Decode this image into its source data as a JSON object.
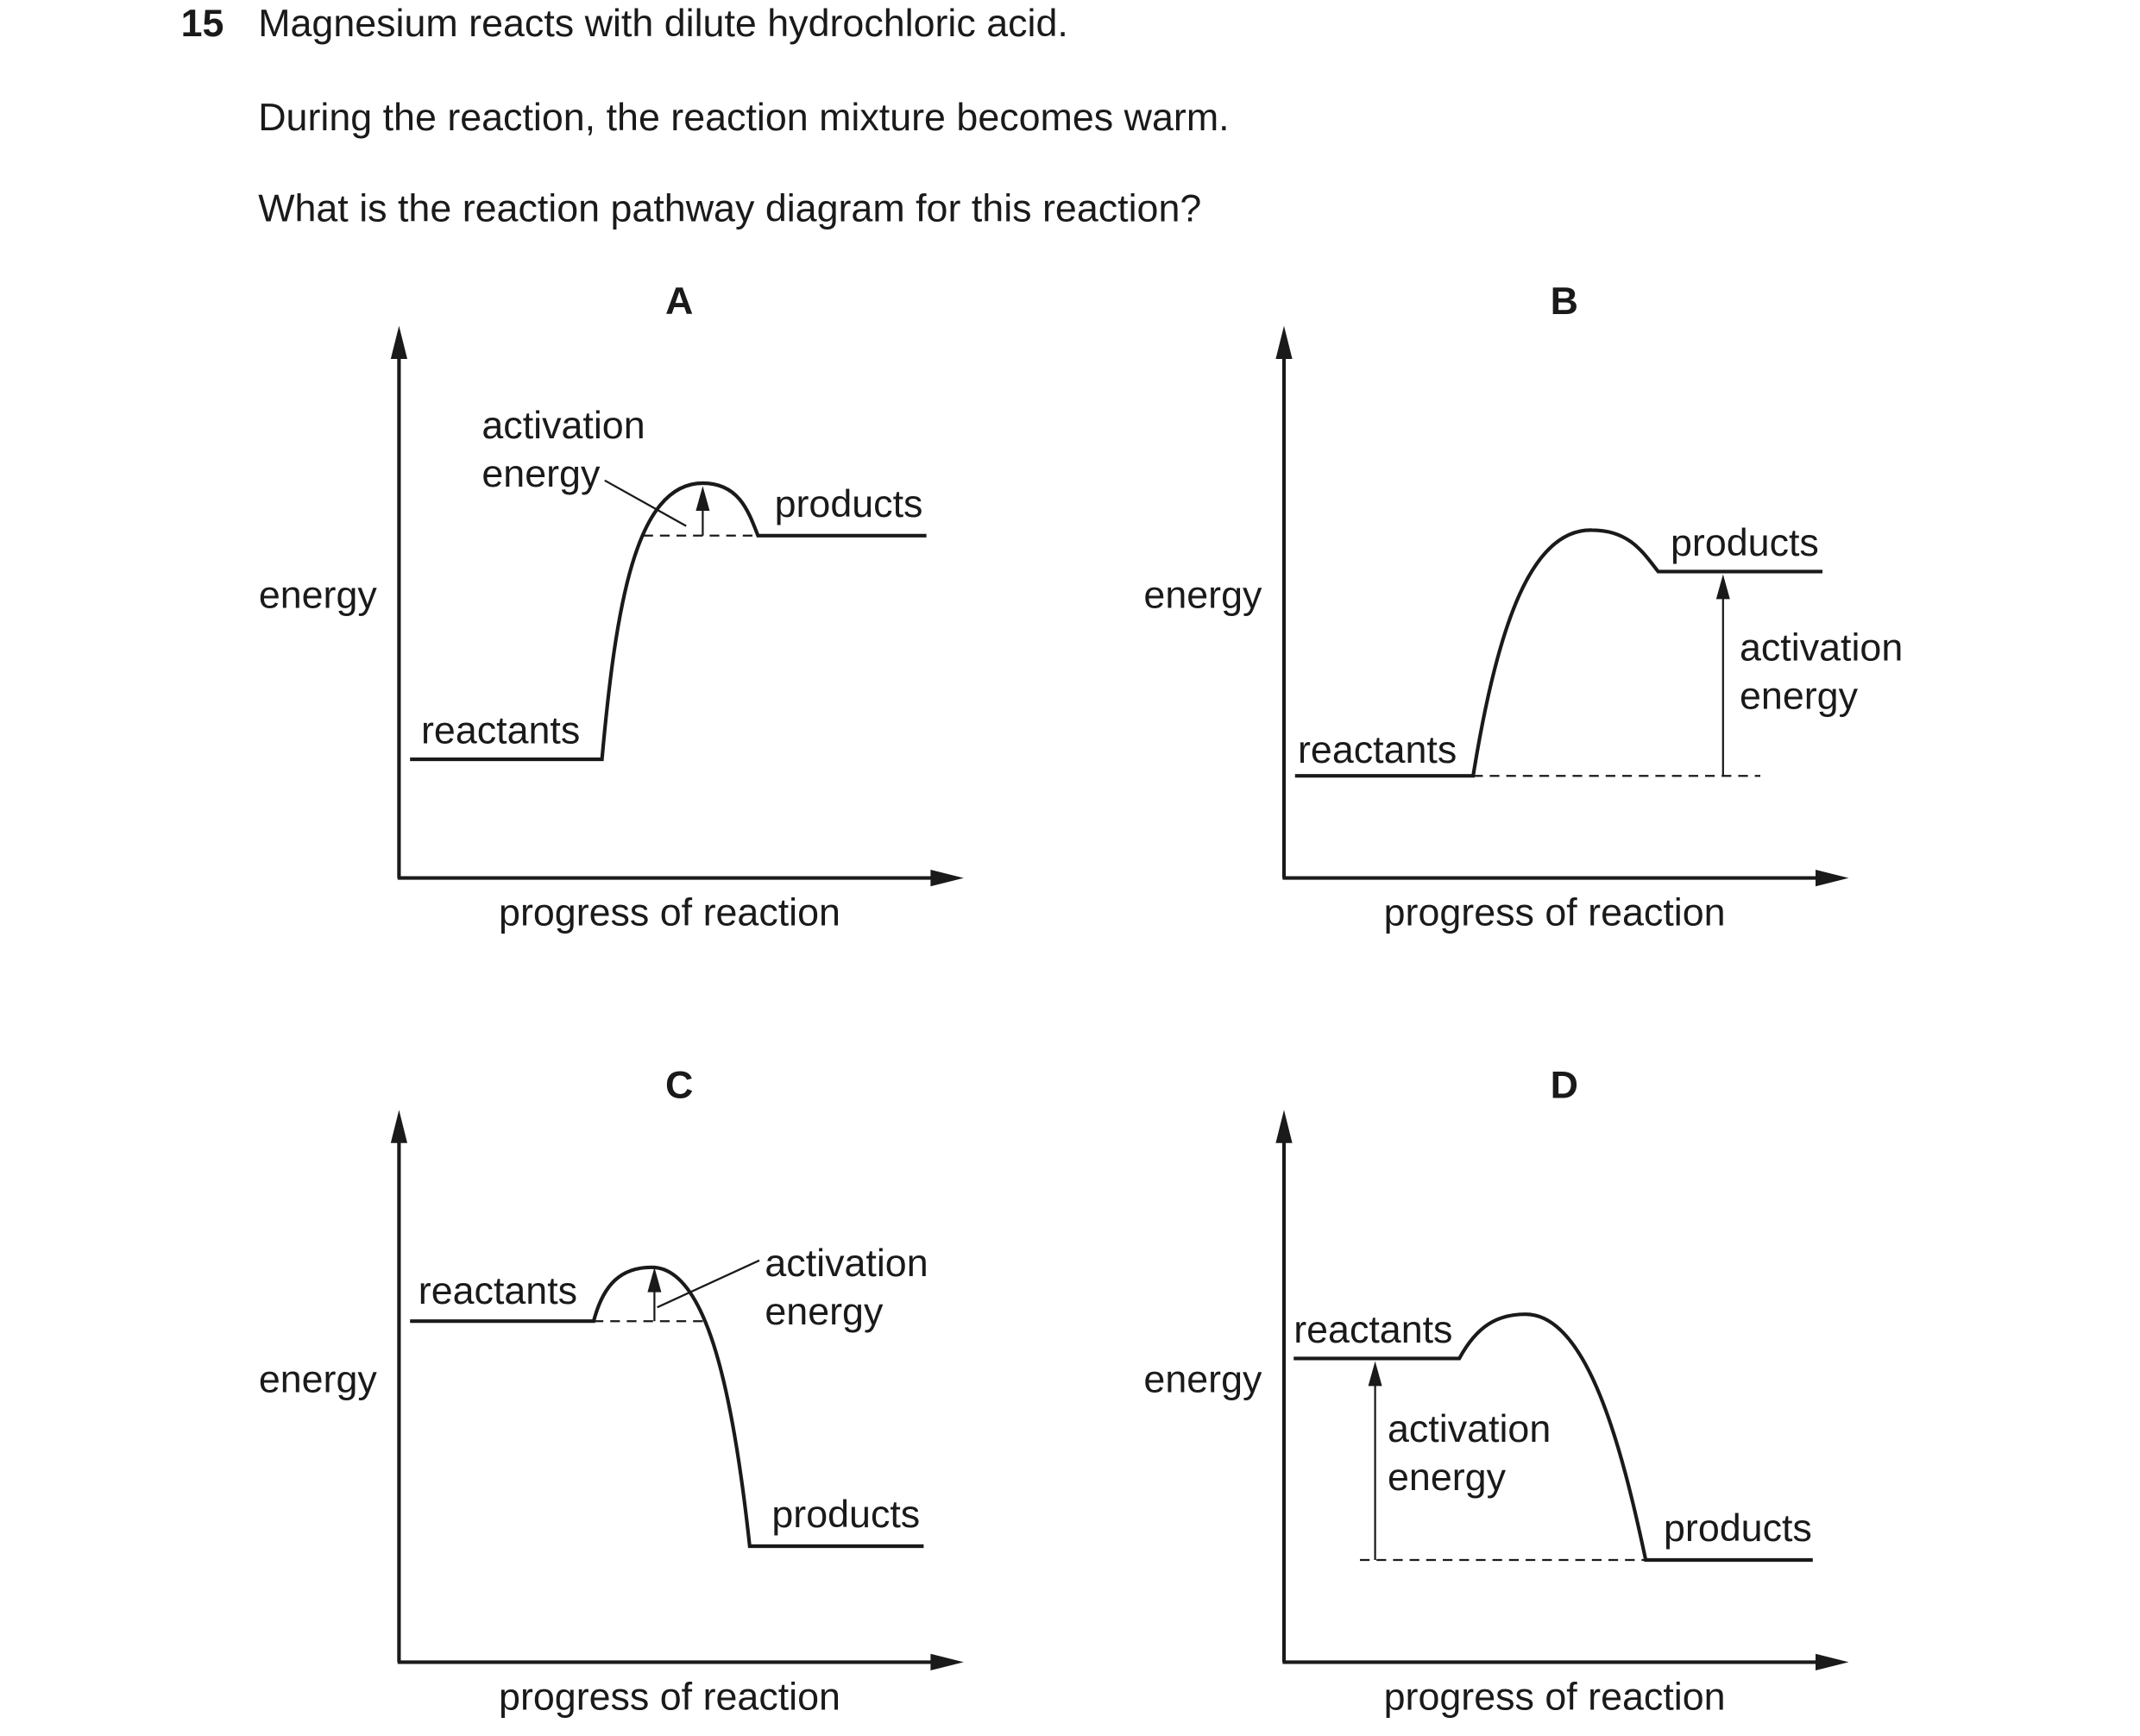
{
  "question": {
    "number": "15",
    "lines": [
      "Magnesium reacts with dilute hydrochloric acid.",
      "During the reaction, the reaction mixture becomes warm.",
      "What is the reaction pathway diagram for this reaction?"
    ]
  },
  "options": [
    {
      "letter": "A",
      "y_axis": "energy",
      "x_axis": "progress of reaction",
      "reactants": "reactants",
      "products": "products",
      "activation_energy": [
        "activation",
        "energy"
      ]
    },
    {
      "letter": "B",
      "y_axis": "energy",
      "x_axis": "progress of reaction",
      "reactants": "reactants",
      "products": "products",
      "activation_energy": [
        "activation",
        "energy"
      ]
    },
    {
      "letter": "C",
      "y_axis": "energy",
      "x_axis": "progress of reaction",
      "reactants": "reactants",
      "products": "products",
      "activation_energy": [
        "activation",
        "energy"
      ]
    },
    {
      "letter": "D",
      "y_axis": "energy",
      "x_axis": "progress of reaction",
      "reactants": "reactants",
      "products": "products",
      "activation_energy": [
        "activation",
        "energy"
      ]
    }
  ]
}
